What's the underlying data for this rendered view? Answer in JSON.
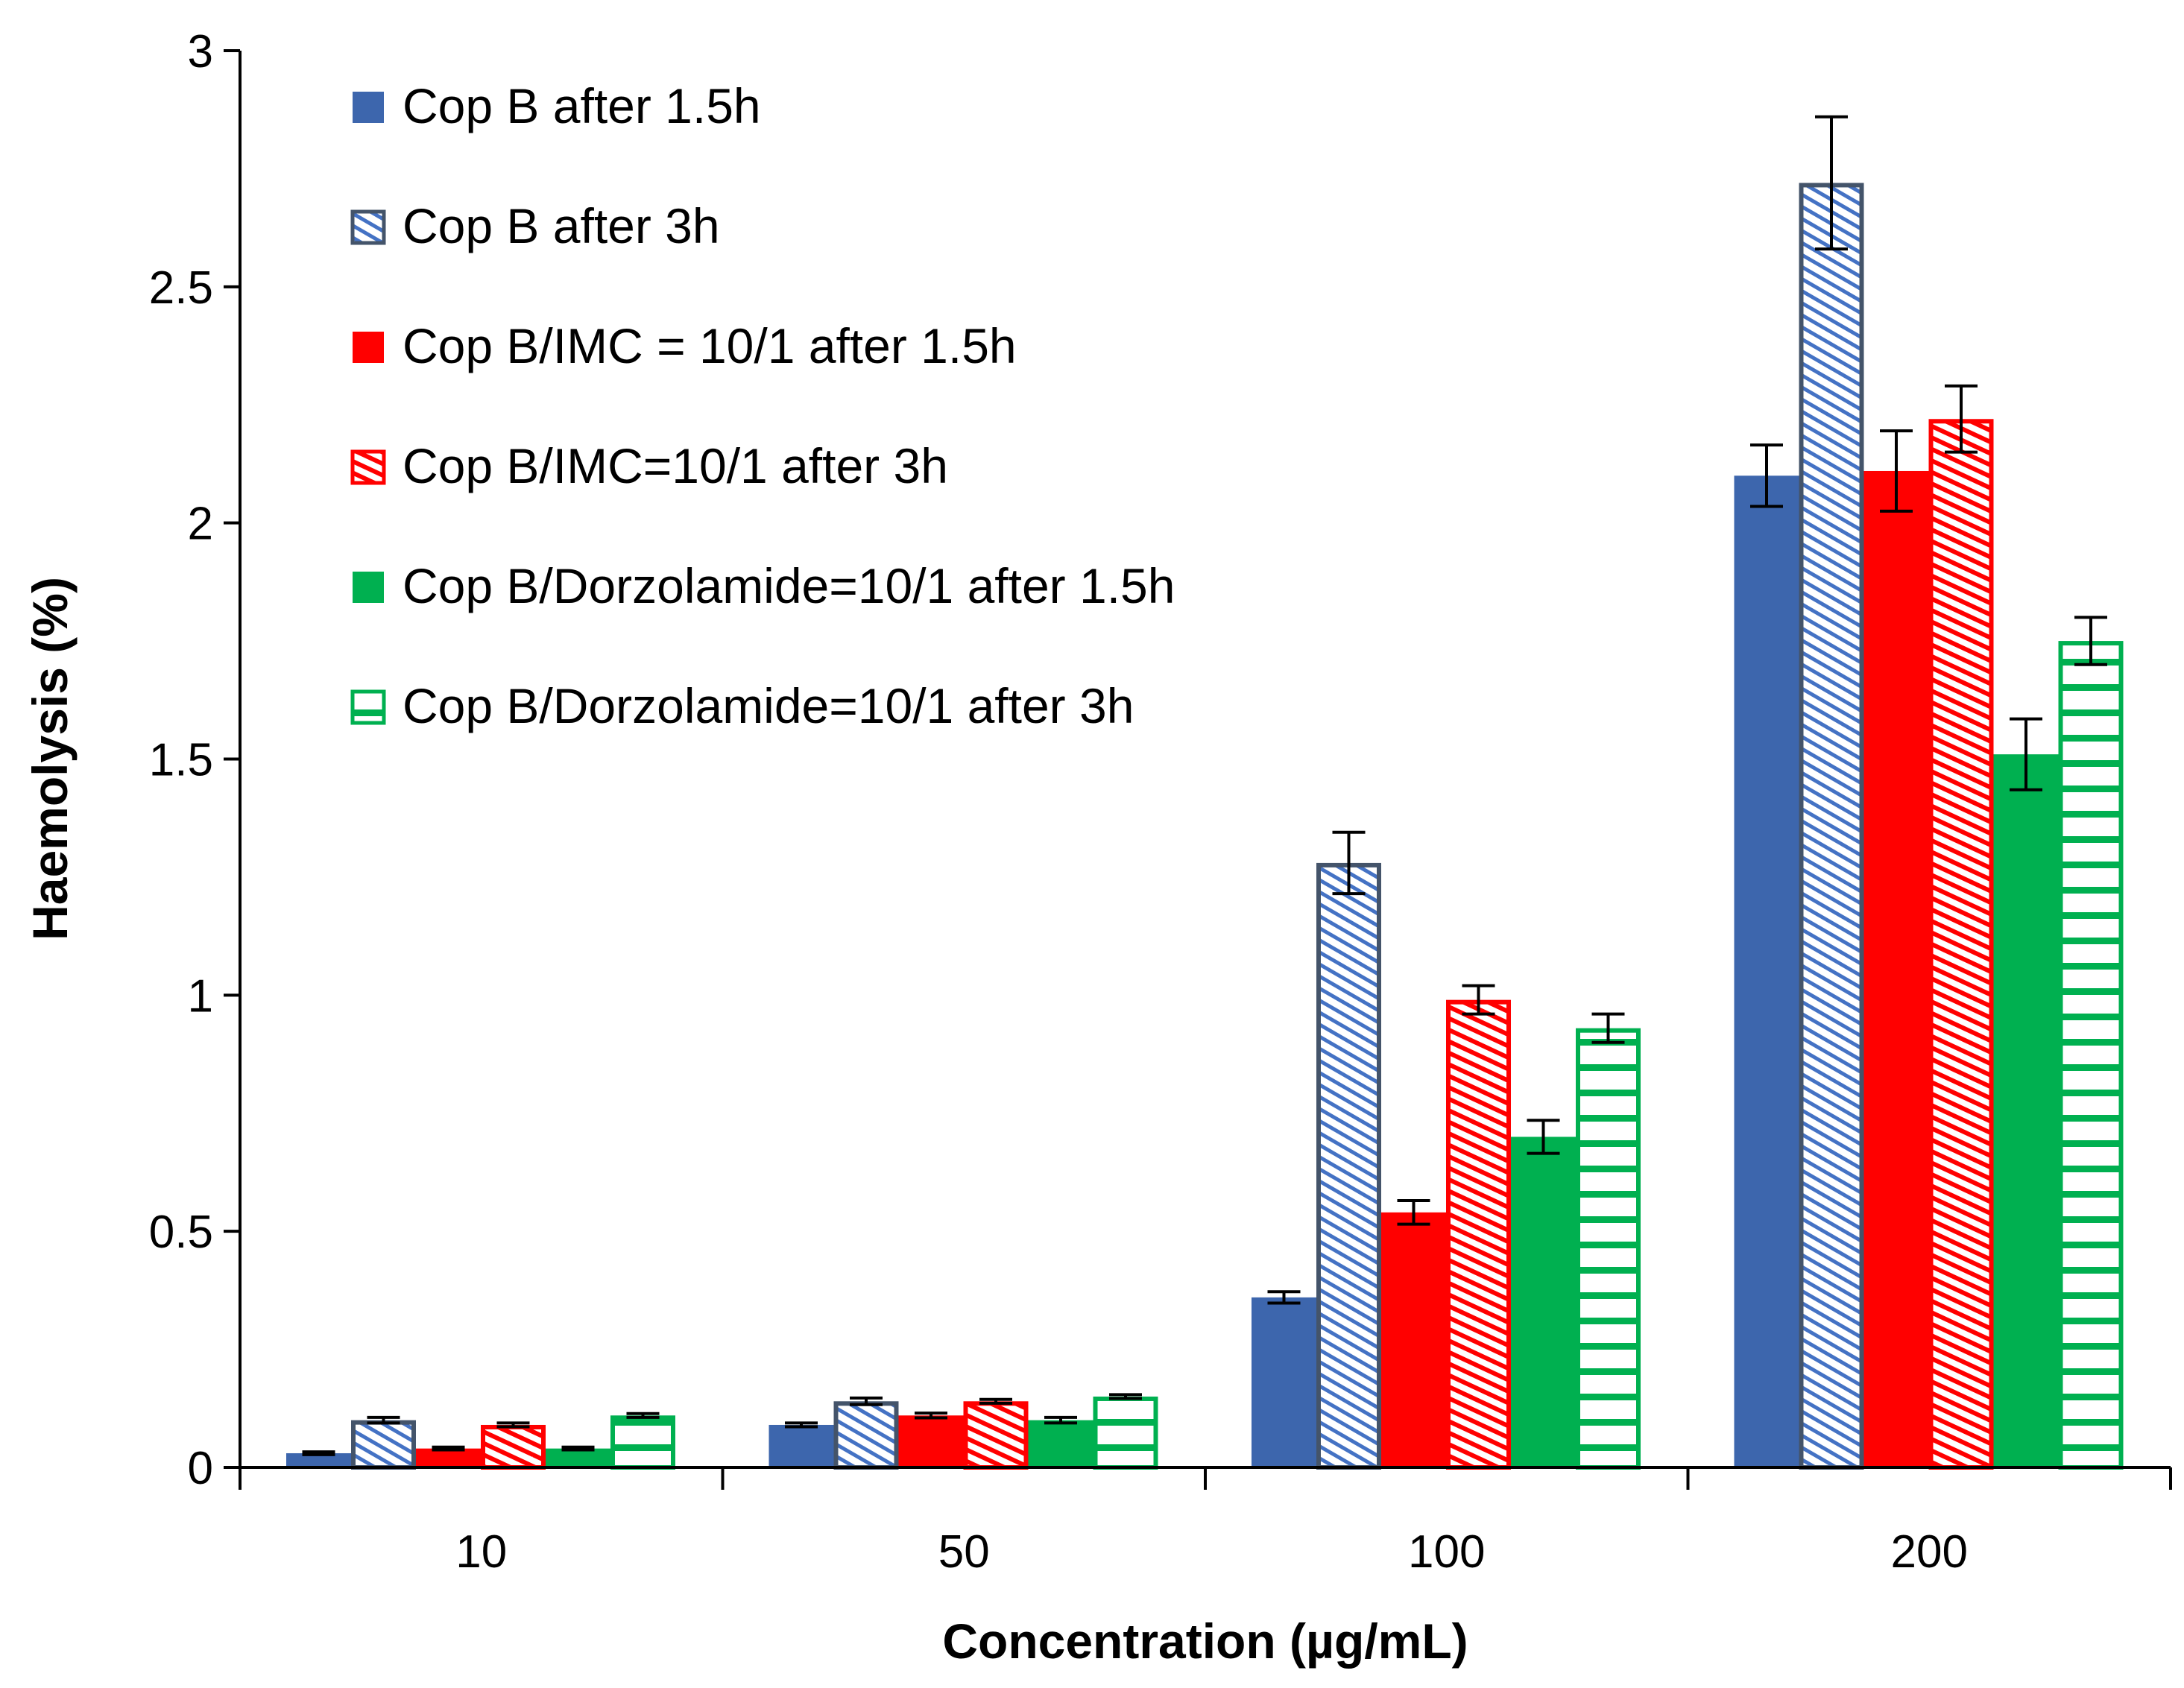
{
  "chart_data": {
    "type": "bar",
    "title": "",
    "xlabel": "Concentration (µg/mL)",
    "ylabel": "Haemolysis (%)",
    "ylim": [
      0,
      3
    ],
    "yticks": [
      "0",
      "0.5",
      "1",
      "1.5",
      "2",
      "2.5",
      "3"
    ],
    "ytick_values": [
      0,
      0.5,
      1,
      1.5,
      2,
      2.5,
      3
    ],
    "categories": [
      "10",
      "50",
      "100",
      "200"
    ],
    "grid": false,
    "legend_placement": "top-left",
    "series": [
      {
        "name": "Cop B after 1.5h",
        "color": "#3d66ad",
        "fill": "solid",
        "values": [
          0.03,
          0.09,
          0.36,
          2.1
        ],
        "errors": [
          0.003,
          0.004,
          0.012,
          0.065
        ]
      },
      {
        "name": "Cop B after 3h",
        "color": "#4472c4",
        "edge": "#44546a",
        "fill": "diagonal-hatch",
        "values": [
          0.1,
          0.14,
          1.28,
          2.72
        ],
        "errors": [
          0.006,
          0.007,
          0.065,
          0.14
        ]
      },
      {
        "name": "Cop B/IMC = 10/1 after 1.5h",
        "color": "#ff0000",
        "fill": "solid",
        "values": [
          0.04,
          0.11,
          0.54,
          2.11
        ],
        "errors": [
          0.003,
          0.005,
          0.025,
          0.085
        ]
      },
      {
        "name": "Cop B/IMC=10/1 after 3h",
        "color": "#ff0000",
        "edge": "#ff0000",
        "fill": "diagonal-hatch-reverse",
        "values": [
          0.09,
          0.14,
          0.99,
          2.22
        ],
        "errors": [
          0.004,
          0.004,
          0.03,
          0.07
        ]
      },
      {
        "name": "Cop B/Dorzolamide=10/1 after 1.5h",
        "color": "#00b050",
        "fill": "solid",
        "values": [
          0.04,
          0.1,
          0.7,
          1.51
        ],
        "errors": [
          0.003,
          0.006,
          0.035,
          0.075
        ]
      },
      {
        "name": "Cop B/Dorzolamide=10/1 after 3h",
        "color": "#00b050",
        "edge": "#00b050",
        "fill": "horizontal-stripes",
        "values": [
          0.11,
          0.15,
          0.93,
          1.75
        ],
        "errors": [
          0.004,
          0.004,
          0.03,
          0.05
        ]
      }
    ]
  }
}
